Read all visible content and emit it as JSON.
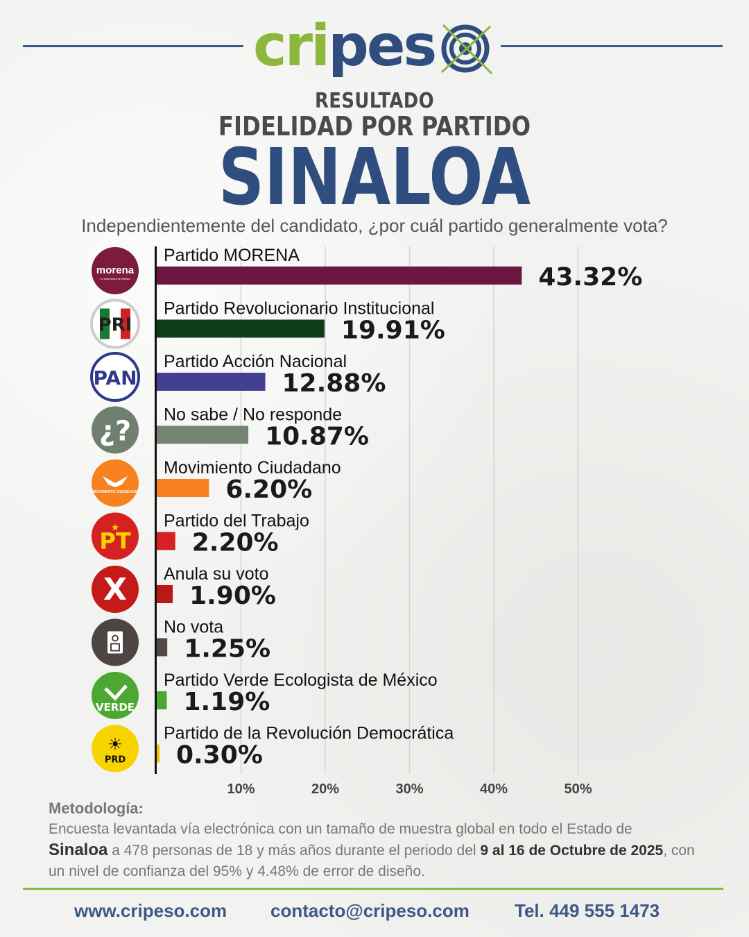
{
  "brand": {
    "logo_part1": "cripes",
    "logo_part2": "",
    "colors": {
      "green": "#8cb63c",
      "blue": "#2f4d7e"
    }
  },
  "header": {
    "line1": "RESULTADO",
    "line2": "FIDELIDAD POR PARTIDO",
    "line3": "SINALOA",
    "question": "Independientemente del candidato, ¿por cuál partido generalmente vota?"
  },
  "chart_data": {
    "type": "bar",
    "orientation": "horizontal",
    "categories": [
      "Partido MORENA",
      "Partido Revolucionario Institucional",
      "Partido Acción Nacional",
      "No sabe / No responde",
      "Movimiento Ciudadano",
      "Partido del Trabajo",
      "Anula su voto",
      "No vota",
      "Partido Verde Ecologista de México",
      "Partido de la Revolución Democrática"
    ],
    "values": [
      43.32,
      19.91,
      12.88,
      10.87,
      6.2,
      2.2,
      1.9,
      1.25,
      1.19,
      0.3
    ],
    "value_labels": [
      "43.32%",
      "19.91%",
      "12.88%",
      "10.87%",
      "6.20%",
      "2.20%",
      "1.90%",
      "1.25%",
      "1.19%",
      "0.30%"
    ],
    "colors": [
      "#6c1740",
      "#0f3d1a",
      "#433f91",
      "#748574",
      "#f7821f",
      "#d52121",
      "#b71818",
      "#514848",
      "#4ca832",
      "#f2c200"
    ],
    "icons": [
      {
        "name": "morena-logo",
        "bg": "#7b1c3f",
        "text": "morena",
        "subtext": "La esperanza de México"
      },
      {
        "name": "pri-logo",
        "bg": "#ffffff",
        "text": "PRI"
      },
      {
        "name": "pan-logo",
        "bg": "#ffffff",
        "text": "PAN"
      },
      {
        "name": "question-icon",
        "bg": "#6f8070",
        "text": "¿?"
      },
      {
        "name": "movimiento-ciudadano-logo",
        "bg": "#f7821f",
        "text": "MOVIMIENTO CIUDADANO"
      },
      {
        "name": "pt-logo",
        "bg": "#d52121",
        "text": "PT"
      },
      {
        "name": "cross-icon",
        "bg": "#c51a1a",
        "text": "X"
      },
      {
        "name": "ballot-icon",
        "bg": "#4d4444",
        "text": ""
      },
      {
        "name": "verde-logo",
        "bg": "#4ca832",
        "text": "VERDE"
      },
      {
        "name": "prd-logo",
        "bg": "#f7d300",
        "text": "PRD"
      }
    ],
    "x_ticks": [
      10,
      20,
      30,
      40,
      50
    ],
    "x_tick_labels": [
      "10%",
      "20%",
      "30%",
      "40%",
      "50%"
    ],
    "xlim": [
      0,
      50
    ],
    "grid": true
  },
  "methodology": {
    "title": "Metodología:",
    "line1": "Encuesta levantada vía electrónica con un tamaño de muestra global en todo el Estado de",
    "state": "Sinaloa",
    "mid": " a 478 personas de 18 y más años durante el periodo del ",
    "period": "9 al 16 de Octubre de 2025",
    "end": ", con un nivel de confianza del 95% y 4.48% de error de diseño."
  },
  "footer": {
    "website": "www.cripeso.com",
    "email": "contacto@cripeso.com",
    "phone": "Tel. 449 555 1473"
  }
}
